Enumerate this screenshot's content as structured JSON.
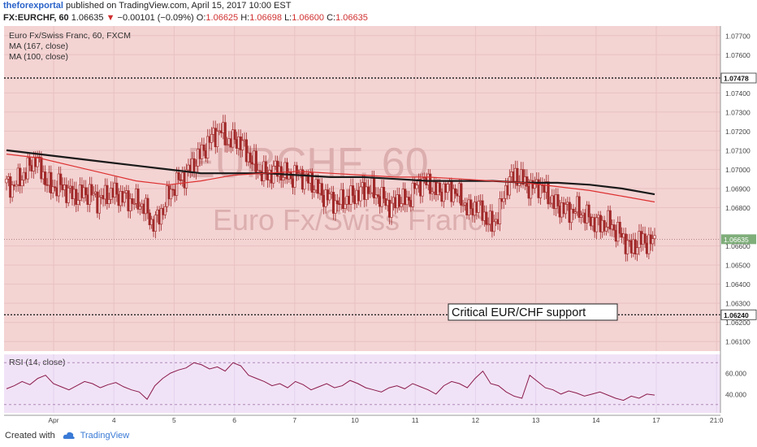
{
  "header": {
    "author": "theforexportal",
    "published_text": "published on TradingView.com, April 15, 2017 10:00 EST",
    "symbol": "FX:EURCHF, 60",
    "last_price": "1.06635",
    "change_arrow": "▼",
    "change": "−0.00101 (−0.09%)",
    "open_label": "O:",
    "open": "1.06625",
    "high_label": "H:",
    "high": "1.06698",
    "low_label": "L:",
    "low": "1.06600",
    "close_label": "C:",
    "close": "1.06635"
  },
  "legend": {
    "title": "Euro Fx/Swiss Franc, 60, FXCM",
    "ma1": "MA (167, close)",
    "ma2": "MA (100, close)"
  },
  "watermark": {
    "symbol": "EURCHF, 60",
    "name": "Euro Fx/Swiss Franc"
  },
  "annotation": "Critical EUR/CHF support",
  "rsi_label": "RSI (14, close)",
  "footer": {
    "created_with": "Created with",
    "brand": "TradingView"
  },
  "colors": {
    "price_bg": "#f4d3d3",
    "rsi_bg": "#f1e3f7",
    "candle": "#a02828",
    "ma167": "#1a1a1a",
    "ma100": "#dd3030",
    "rsi_line": "#8a1a4a",
    "last_price_tag": "#7fae7a"
  },
  "chart_data": {
    "type": "candlestick",
    "y_axis": {
      "range": [
        1.0605,
        1.0775
      ],
      "ticks": [
        "1.07700",
        "1.07600",
        "1.07400",
        "1.07300",
        "1.07200",
        "1.07100",
        "1.07000",
        "1.06900",
        "1.06800",
        "1.06600",
        "1.06500",
        "1.06400",
        "1.06300",
        "1.06200",
        "1.06100"
      ]
    },
    "x_axis": {
      "labels": [
        "Apr",
        "4",
        "5",
        "6",
        "7",
        "10",
        "11",
        "12",
        "13",
        "14",
        "17",
        "21:0"
      ]
    },
    "price_lines": [
      {
        "value": 1.07478,
        "label": "1.07478"
      },
      {
        "value": 1.0624,
        "label": "1.06240"
      }
    ],
    "last_price": {
      "value": 1.06635,
      "label": "1.06635"
    },
    "price_series": [
      1.0693,
      1.0691,
      1.0695,
      1.07,
      1.0706,
      1.0697,
      1.069,
      1.0692,
      1.0689,
      1.0686,
      1.0687,
      1.0688,
      1.0684,
      1.0686,
      1.0688,
      1.0686,
      1.0684,
      1.0683,
      1.0681,
      1.0672,
      1.0675,
      1.0685,
      1.0692,
      1.0696,
      1.07,
      1.0706,
      1.0712,
      1.0718,
      1.072,
      1.0714,
      1.0716,
      1.0711,
      1.0704,
      1.0699,
      1.0697,
      1.07,
      1.0698,
      1.0696,
      1.0698,
      1.0695,
      1.0692,
      1.0687,
      1.0685,
      1.0682,
      1.0684,
      1.0686,
      1.0688,
      1.069,
      1.0687,
      1.0684,
      1.068,
      1.0685,
      1.0683,
      1.069,
      1.0694,
      1.0692,
      1.0688,
      1.069,
      1.0689,
      1.0685,
      1.0678,
      1.0682,
      1.0676,
      1.067,
      1.0679,
      1.0693,
      1.0697,
      1.0694,
      1.069,
      1.0692,
      1.0688,
      1.0682,
      1.068,
      1.0678,
      1.0679,
      1.0676,
      1.0673,
      1.0671,
      1.0672,
      1.0668,
      1.0664,
      1.0658,
      1.0663,
      1.0662
    ],
    "series": [
      {
        "name": "MA (167, close)",
        "values": [
          1.071,
          1.0708,
          1.0706,
          1.0704,
          1.0702,
          1.07,
          1.0698,
          1.0698,
          1.0698,
          1.0697,
          1.0696,
          1.0696,
          1.0695,
          1.0694,
          1.0694,
          1.0694,
          1.0693,
          1.0693,
          1.0692,
          1.069,
          1.0687
        ]
      },
      {
        "name": "MA (100, close)",
        "values": [
          1.0708,
          1.0706,
          1.0702,
          1.0698,
          1.0694,
          1.0692,
          1.0694,
          1.0697,
          1.0698,
          1.0699,
          1.0698,
          1.0697,
          1.0696,
          1.0696,
          1.0695,
          1.0694,
          1.0693,
          1.0691,
          1.0689,
          1.0686,
          1.0683
        ]
      }
    ],
    "rsi": {
      "y_range": [
        22,
        78
      ],
      "ticks": [
        "60.000",
        "40.000"
      ],
      "levels": [
        70,
        30
      ],
      "values": [
        45,
        48,
        52,
        49,
        55,
        58,
        50,
        47,
        44,
        48,
        52,
        50,
        46,
        49,
        51,
        47,
        44,
        42,
        35,
        48,
        55,
        60,
        63,
        65,
        70,
        68,
        64,
        66,
        62,
        70,
        67,
        58,
        55,
        52,
        48,
        50,
        46,
        52,
        49,
        44,
        47,
        50,
        46,
        48,
        53,
        50,
        46,
        44,
        42,
        46,
        48,
        45,
        50,
        47,
        44,
        40,
        48,
        52,
        50,
        46,
        55,
        62,
        50,
        48,
        42,
        38,
        36,
        58,
        52,
        46,
        44,
        40,
        43,
        41,
        38,
        40,
        42,
        39,
        36,
        34,
        38,
        36,
        40,
        39
      ]
    }
  }
}
